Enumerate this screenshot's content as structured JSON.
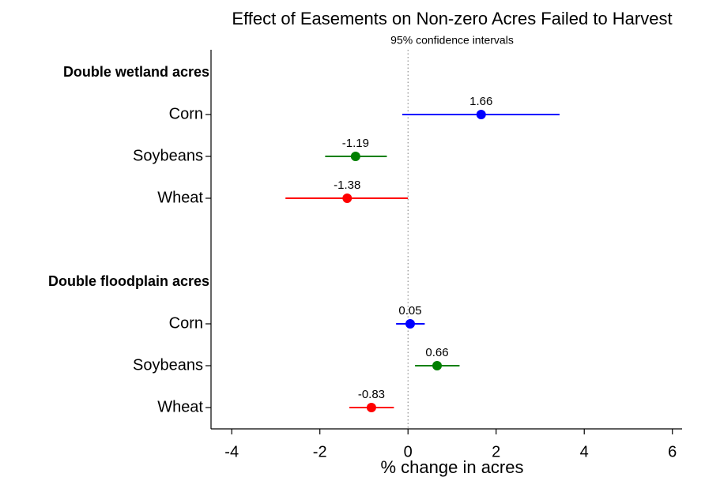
{
  "chart_data": {
    "type": "coefplot",
    "title": "Effect of Easements on Non-zero Acres Failed to Harvest",
    "subtitle": "95% confidence intervals",
    "x_label": "% change in acres",
    "xlim": [
      -4.47,
      6.22
    ],
    "xticks": [
      -4,
      -2,
      0,
      2,
      4,
      6
    ],
    "reference_line": 0,
    "groups": [
      {
        "label": "Double wetland acres",
        "items": [
          {
            "label": "Corn",
            "color": "#0000ff",
            "value": 1.66,
            "lower": -0.13,
            "upper": 3.44
          },
          {
            "label": "Soybeans",
            "color": "#008000",
            "value": -1.19,
            "lower": -1.88,
            "upper": -0.48
          },
          {
            "label": "Wheat",
            "color": "#ff0000",
            "value": -1.38,
            "lower": -2.78,
            "upper": 0.0
          }
        ]
      },
      {
        "label": "Double floodplain acres",
        "items": [
          {
            "label": "Corn",
            "color": "#0000ff",
            "value": 0.05,
            "lower": -0.27,
            "upper": 0.38
          },
          {
            "label": "Soybeans",
            "color": "#008000",
            "value": 0.66,
            "lower": 0.16,
            "upper": 1.17
          },
          {
            "label": "Wheat",
            "color": "#ff0000",
            "value": -0.83,
            "lower": -1.33,
            "upper": -0.32
          }
        ]
      }
    ]
  }
}
